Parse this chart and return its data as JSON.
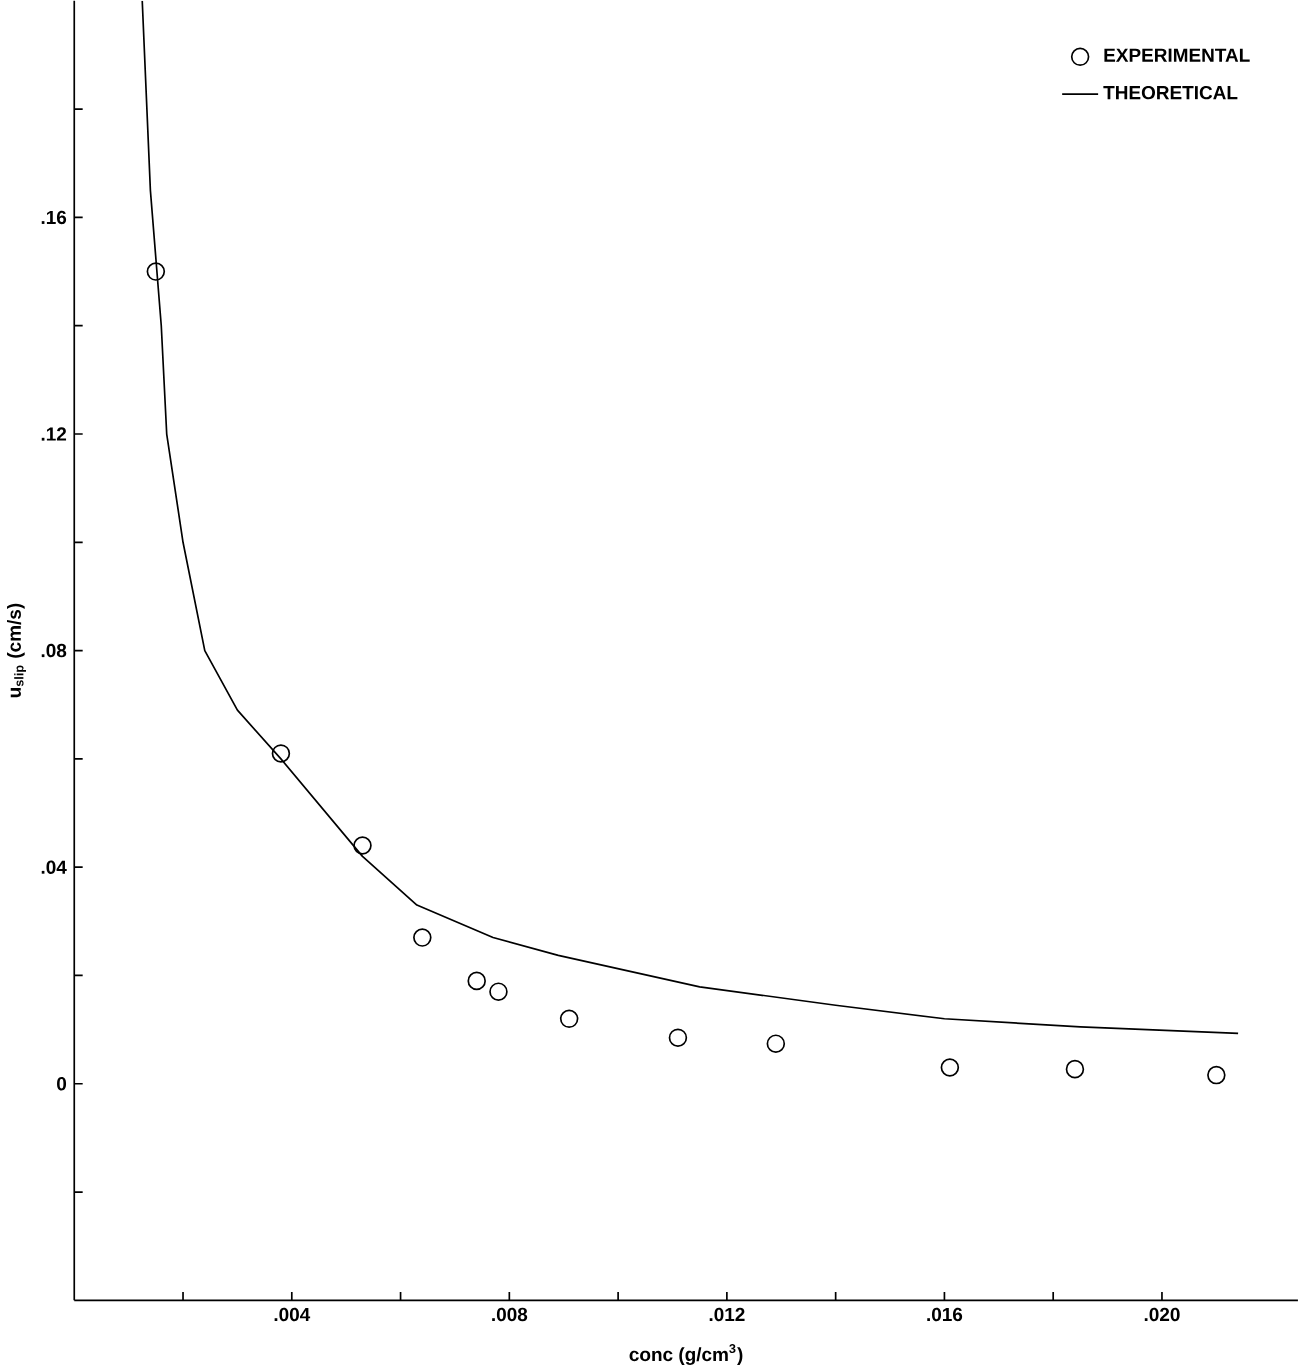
{
  "chart_data": {
    "type": "scatter",
    "xlabel": "conc (g/cm$^{3}$)",
    "ylabel": "u$_{slip}$ (cm/s)",
    "xlim": [
      0,
      0.0225
    ],
    "ylim": [
      -0.04,
      0.2
    ],
    "xticks": [
      {
        "value": 0.002,
        "label": null
      },
      {
        "value": 0.004,
        "label": ".004"
      },
      {
        "value": 0.006,
        "label": null
      },
      {
        "value": 0.008,
        "label": ".008"
      },
      {
        "value": 0.01,
        "label": null
      },
      {
        "value": 0.012,
        "label": ".012"
      },
      {
        "value": 0.014,
        "label": null
      },
      {
        "value": 0.016,
        "label": ".016"
      },
      {
        "value": 0.018,
        "label": null
      },
      {
        "value": 0.02,
        "label": ".020"
      }
    ],
    "yticks": [
      {
        "value": -0.02,
        "label": null
      },
      {
        "value": 0,
        "label": "0"
      },
      {
        "value": 0.02,
        "label": null
      },
      {
        "value": 0.04,
        "label": ".04"
      },
      {
        "value": 0.06,
        "label": null
      },
      {
        "value": 0.08,
        "label": ".08"
      },
      {
        "value": 0.1,
        "label": null
      },
      {
        "value": 0.12,
        "label": ".12"
      },
      {
        "value": 0.14,
        "label": null
      },
      {
        "value": 0.16,
        "label": ".16"
      },
      {
        "value": 0.18,
        "label": null
      }
    ],
    "legend": "top right",
    "grid": false,
    "series": [
      {
        "name": "EXPERIMENTAL",
        "marker": "circle",
        "color": "#000000",
        "x": [
          0.0015,
          0.0038,
          0.0053,
          0.0064,
          0.0074,
          0.0078,
          0.0091,
          0.0111,
          0.0129,
          0.0161,
          0.0184,
          0.021
        ],
        "values": [
          0.15,
          0.061,
          0.044,
          0.027,
          0.019,
          0.017,
          0.012,
          0.0085,
          0.0074,
          0.003,
          0.0027,
          0.0016
        ]
      },
      {
        "name": "THEORETICAL",
        "type": "line",
        "line_style": "solid",
        "color": "#000000",
        "x": [
          0.00125,
          0.0014,
          0.0016,
          0.0017,
          0.002,
          0.0024,
          0.003,
          0.0038,
          0.0053,
          0.0063,
          0.0077,
          0.0089,
          0.0115,
          0.014,
          0.016,
          0.0185,
          0.0214
        ],
        "values": [
          0.2,
          0.165,
          0.14,
          0.12,
          0.1,
          0.08,
          0.069,
          0.06,
          0.042,
          0.033,
          0.027,
          0.0237,
          0.0179,
          0.0145,
          0.012,
          0.0105,
          0.0093
        ]
      }
    ]
  }
}
